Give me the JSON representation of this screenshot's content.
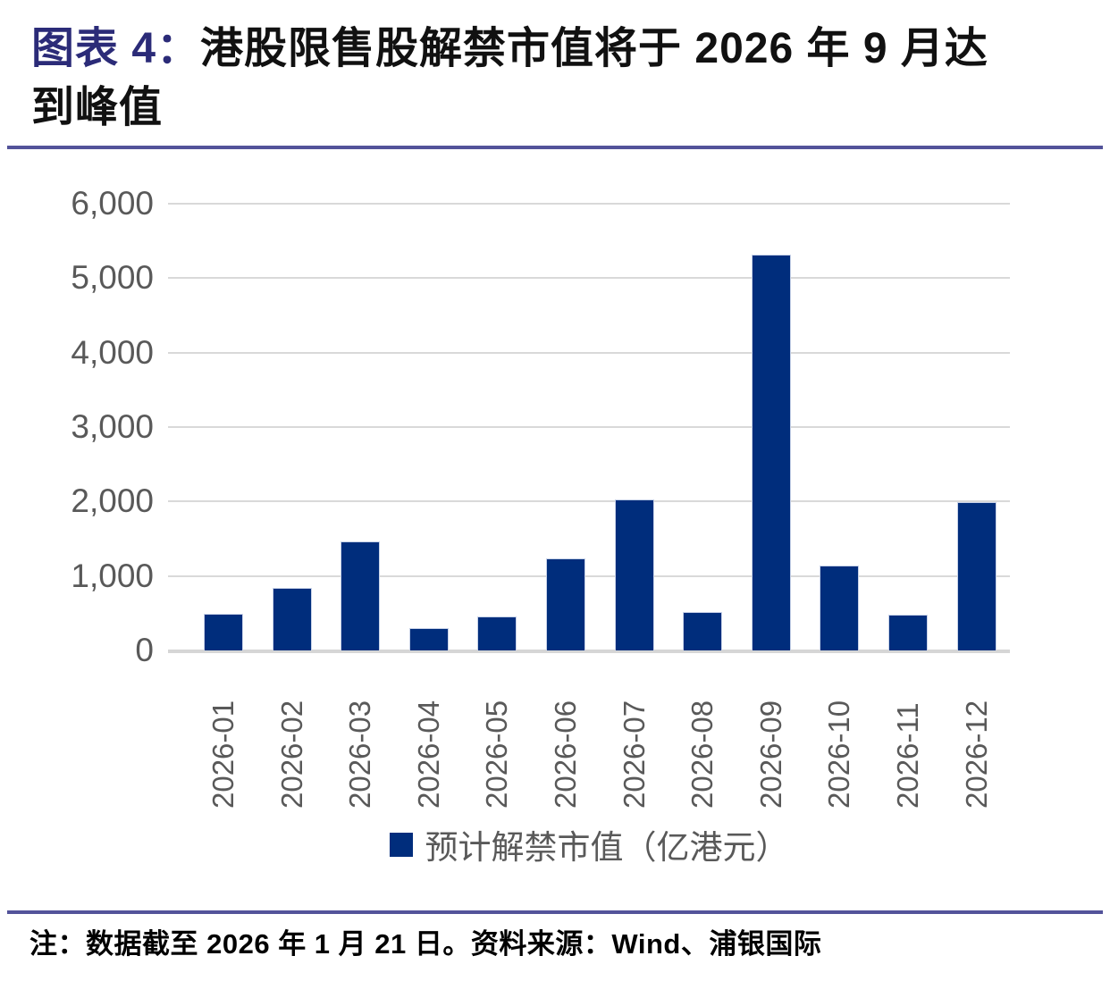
{
  "title": {
    "prefix": "图表 4：",
    "line1_rest": "港股限售股解禁市值将于 2026 年 9 月达",
    "line2": "到峰值"
  },
  "chart_data": {
    "type": "bar",
    "categories": [
      "2026-01",
      "2026-02",
      "2026-03",
      "2026-04",
      "2026-05",
      "2026-06",
      "2026-07",
      "2026-08",
      "2026-09",
      "2026-10",
      "2026-11",
      "2026-12"
    ],
    "values": [
      490,
      840,
      1460,
      300,
      460,
      1240,
      2030,
      510,
      5310,
      1135,
      475,
      1990
    ],
    "series_name": "预计解禁市值（亿港元）",
    "ylim": [
      0,
      6000
    ],
    "ytick_interval": 1000,
    "ytick_labels": [
      "0",
      "1,000",
      "2,000",
      "3,000",
      "4,000",
      "5,000",
      "6,000"
    ],
    "grid": true,
    "legend_position": "bottom",
    "bar_color": "#002D7C",
    "peak_category": "2026-09"
  },
  "legend": {
    "label": "预计解禁市值（亿港元）",
    "swatch_color": "#002D7C"
  },
  "note": "注：数据截至 2026 年 1 月 21 日。资料来源：Wind、浦银国际",
  "colors": {
    "accent_navy": "#2B2B78",
    "bar_navy": "#002D7C",
    "rule_purple": "#53539A",
    "axis_text_gray": "#595959",
    "gridline_gray": "#D9D9D9"
  }
}
